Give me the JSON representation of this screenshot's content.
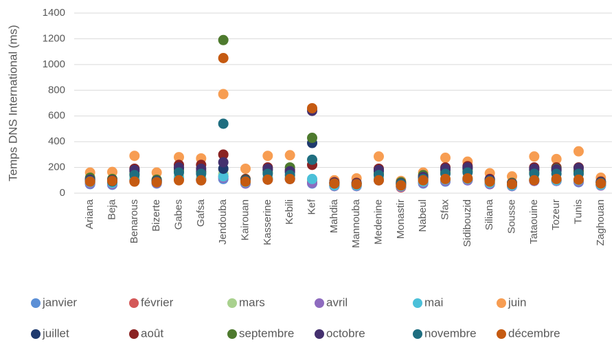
{
  "chart_data": {
    "type": "scatter",
    "y_label": "Temps DNS International (ms)",
    "categories": [
      "Ariana",
      "Beja",
      "Benarous",
      "Bizerte",
      "Gabes",
      "Gafsa",
      "Jendouba",
      "Kairouan",
      "Kasserine",
      "Kebili",
      "Kef",
      "Mahdia",
      "Mannouba",
      "Medenine",
      "Monastir",
      "Nabeul",
      "Sfax",
      "Sidibouzid",
      "Siliana",
      "Sousse",
      "Tataouine",
      "Tozeur",
      "Tunis",
      "Zaghouan"
    ],
    "ylim": [
      0,
      1400
    ],
    "yticks": [
      0,
      200,
      400,
      600,
      800,
      1000,
      1200,
      1400
    ],
    "grid": true,
    "series": [
      {
        "name": "janvier",
        "color": "#5b8fd6",
        "values": [
          70,
          65,
          110,
          75,
          120,
          110,
          110,
          75,
          115,
          110,
          75,
          55,
          55,
          100,
          50,
          75,
          90,
          100,
          70,
          55,
          95,
          95,
          85,
          60
        ]
      },
      {
        "name": "février",
        "color": "#d45858",
        "values": [
          80,
          75,
          100,
          80,
          110,
          105,
          130,
          80,
          110,
          115,
          90,
          60,
          60,
          105,
          45,
          85,
          100,
          105,
          75,
          60,
          100,
          100,
          95,
          65
        ]
      },
      {
        "name": "mars",
        "color": "#a9d18e",
        "values": [
          90,
          85,
          120,
          90,
          130,
          120,
          150,
          90,
          120,
          125,
          100,
          65,
          65,
          115,
          55,
          95,
          110,
          115,
          80,
          65,
          110,
          110,
          100,
          70
        ]
      },
      {
        "name": "avril",
        "color": "#8e6bbf",
        "values": [
          75,
          70,
          95,
          80,
          110,
          100,
          120,
          75,
          105,
          110,
          80,
          55,
          55,
          100,
          50,
          80,
          95,
          100,
          70,
          55,
          95,
          95,
          90,
          60
        ]
      },
      {
        "name": "mai",
        "color": "#4bc0d9",
        "values": [
          85,
          80,
          105,
          85,
          120,
          110,
          130,
          85,
          115,
          120,
          110,
          60,
          60,
          110,
          55,
          90,
          105,
          110,
          80,
          60,
          105,
          100,
          100,
          65
        ]
      },
      {
        "name": "juin",
        "color": "#f79d52",
        "values": [
          160,
          165,
          290,
          160,
          280,
          270,
          770,
          190,
          290,
          295,
          650,
          100,
          115,
          285,
          95,
          160,
          275,
          245,
          155,
          130,
          285,
          265,
          325,
          120
        ]
      },
      {
        "name": "juillet",
        "color": "#1f3a6e",
        "values": [
          100,
          95,
          170,
          95,
          190,
          170,
          190,
          100,
          180,
          160,
          390,
          80,
          75,
          170,
          70,
          120,
          180,
          190,
          105,
          75,
          180,
          175,
          170,
          85
        ]
      },
      {
        "name": "août",
        "color": "#8b2323",
        "values": [
          110,
          100,
          190,
          100,
          220,
          220,
          300,
          110,
          200,
          180,
          220,
          85,
          80,
          190,
          80,
          130,
          200,
          210,
          110,
          80,
          200,
          200,
          200,
          90
        ]
      },
      {
        "name": "septembre",
        "color": "#4e7a2e",
        "values": [
          120,
          110,
          150,
          105,
          170,
          160,
          1190,
          105,
          160,
          200,
          430,
          80,
          75,
          150,
          85,
          140,
          160,
          170,
          100,
          80,
          160,
          190,
          170,
          85
        ]
      },
      {
        "name": "octobre",
        "color": "#44306e",
        "values": [
          105,
          100,
          180,
          95,
          200,
          190,
          240,
          100,
          190,
          170,
          640,
          80,
          75,
          180,
          75,
          125,
          190,
          200,
          105,
          75,
          190,
          185,
          195,
          85
        ]
      },
      {
        "name": "novembre",
        "color": "#1f6e80",
        "values": [
          95,
          90,
          140,
          90,
          160,
          150,
          540,
          95,
          150,
          140,
          260,
          75,
          70,
          140,
          70,
          110,
          150,
          160,
          95,
          70,
          150,
          150,
          150,
          80
        ]
      },
      {
        "name": "décembre",
        "color": "#c55a11",
        "values": [
          90,
          95,
          90,
          85,
          100,
          100,
          1050,
          90,
          105,
          110,
          660,
          75,
          70,
          100,
          60,
          100,
          110,
          115,
          90,
          70,
          100,
          110,
          105,
          75
        ]
      }
    ]
  }
}
